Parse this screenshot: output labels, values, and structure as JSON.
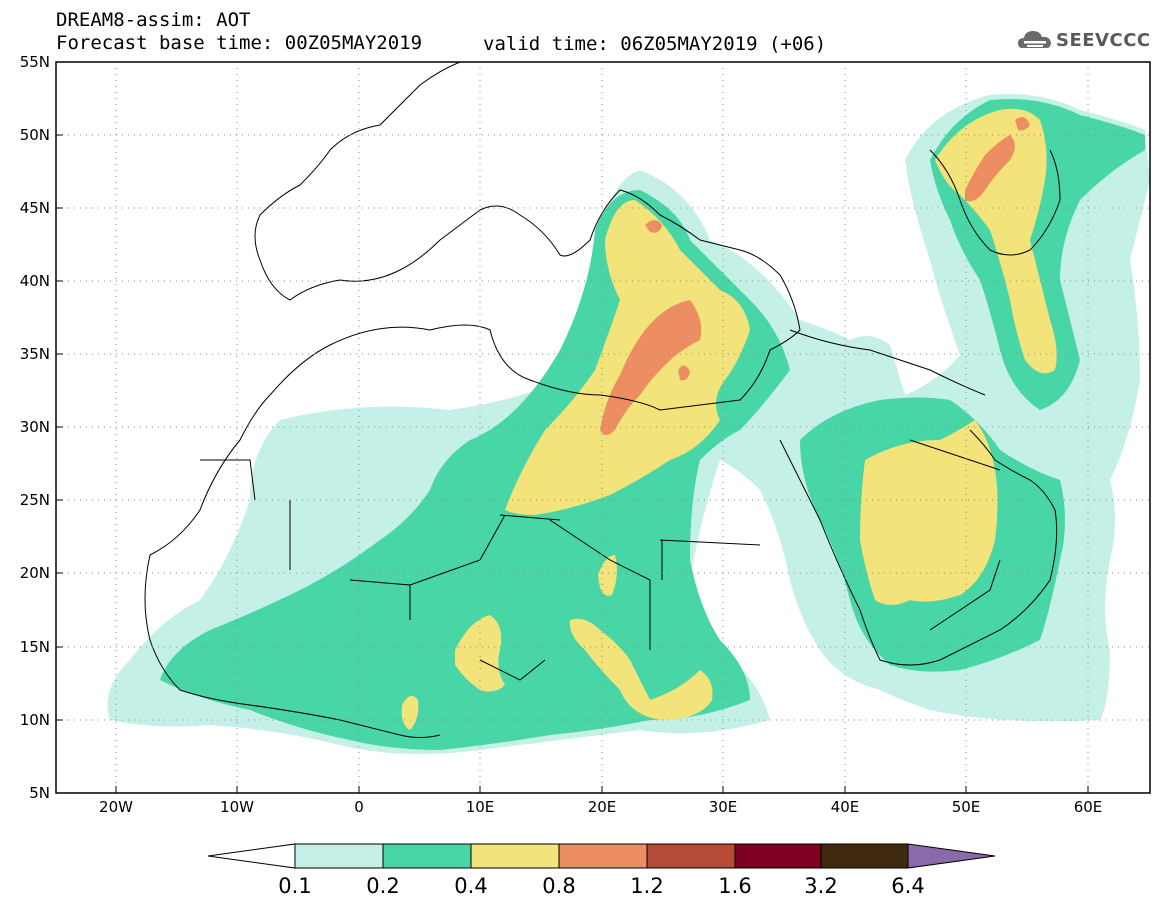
{
  "header": {
    "title": "DREAM8-assim: AOT",
    "base_time": "Forecast base time: 00Z05MAY2019",
    "valid_time": "valid time: 06Z05MAY2019 (+06)",
    "logo_text": "SEEVCCC"
  },
  "map": {
    "lat_labels": [
      "55N",
      "50N",
      "45N",
      "40N",
      "35N",
      "30N",
      "25N",
      "20N",
      "15N",
      "10N",
      "5N"
    ],
    "lon_labels": [
      "20W",
      "10W",
      "0",
      "10E",
      "20E",
      "30E",
      "40E",
      "50E",
      "60E"
    ],
    "lat_range": [
      5,
      55
    ],
    "lon_range": [
      -25,
      65
    ],
    "grid": "dotted"
  },
  "colorbar": {
    "levels": [
      "0.1",
      "0.2",
      "0.4",
      "0.8",
      "1.2",
      "1.6",
      "3.2",
      "6.4"
    ],
    "colors": [
      "#c4f0e8",
      "#48d6a6",
      "#f2e37a",
      "#ec8e62",
      "#b54a36",
      "#7d0020",
      "#3f2a10",
      "#8a6aaa"
    ]
  }
}
